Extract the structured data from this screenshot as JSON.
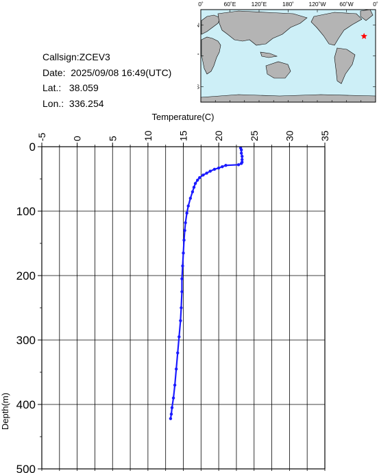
{
  "station": {
    "callsign_label": "Callsign:",
    "callsign": "ZCEV3",
    "date_label": "Date:",
    "date": "2025/09/08 16:49(UTC)",
    "lat_label": "Lat.:",
    "lat": "38.059",
    "lon_label": "Lon.:",
    "lon": "336.254"
  },
  "map": {
    "lon_ticks": [
      "0˚",
      "60˚E",
      "120˚E",
      "180˚",
      "120˚W",
      "60˚W",
      "0˚"
    ],
    "lat_ticks": [
      "60˚N",
      "0˚",
      "60˚S"
    ],
    "ocean_color": "#cdeff7",
    "land_color": "#b4b4b4",
    "marker_color": "#ff0000",
    "marker": {
      "lat": 38.059,
      "lon": 336.254
    }
  },
  "chart_data": {
    "type": "line",
    "xlabel": "Temperature(C)",
    "ylabel": "Depth(m)",
    "xlim": [
      -5,
      35
    ],
    "ylim": [
      0,
      500
    ],
    "y_inverted": true,
    "x_ticks": [
      -5,
      0,
      5,
      10,
      15,
      20,
      25,
      30,
      35
    ],
    "y_ticks": [
      0,
      100,
      200,
      300,
      400,
      500
    ],
    "grid": true,
    "series": [
      {
        "color": "#1a1aff",
        "points": [
          [
            23.1,
            2
          ],
          [
            23.2,
            5
          ],
          [
            23.2,
            10
          ],
          [
            23.3,
            15
          ],
          [
            23.3,
            20
          ],
          [
            23.3,
            24
          ],
          [
            23.2,
            26
          ],
          [
            22.8,
            28
          ],
          [
            21.0,
            29
          ],
          [
            20.5,
            31
          ],
          [
            20.0,
            33
          ],
          [
            19.4,
            35
          ],
          [
            18.8,
            38
          ],
          [
            18.3,
            41
          ],
          [
            17.8,
            44
          ],
          [
            17.3,
            48
          ],
          [
            17.0,
            52
          ],
          [
            16.7,
            57
          ],
          [
            16.5,
            63
          ],
          [
            16.3,
            70
          ],
          [
            16.0,
            80
          ],
          [
            15.7,
            92
          ],
          [
            15.5,
            103
          ],
          [
            15.3,
            118
          ],
          [
            15.2,
            130
          ],
          [
            15.1,
            145
          ],
          [
            15.0,
            165
          ],
          [
            14.9,
            185
          ],
          [
            14.8,
            205
          ],
          [
            14.8,
            225
          ],
          [
            14.7,
            250
          ],
          [
            14.6,
            270
          ],
          [
            14.4,
            295
          ],
          [
            14.2,
            320
          ],
          [
            14.0,
            345
          ],
          [
            13.8,
            370
          ],
          [
            13.6,
            390
          ],
          [
            13.4,
            405
          ],
          [
            13.3,
            415
          ],
          [
            13.2,
            422
          ]
        ]
      }
    ]
  }
}
